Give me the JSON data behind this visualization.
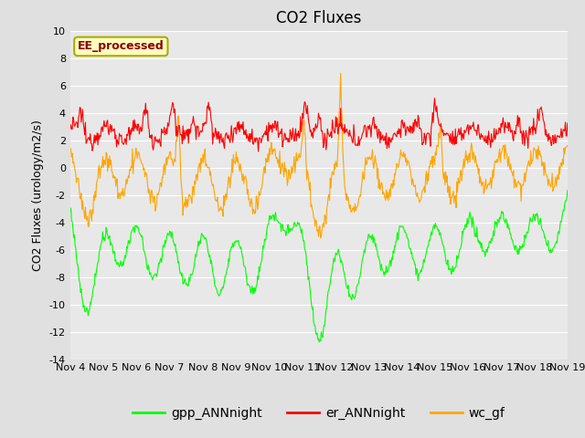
{
  "title": "CO2 Fluxes",
  "ylabel": "CO2 Fluxes (urology/m2/s)",
  "ylim": [
    -14,
    10
  ],
  "yticks": [
    -14,
    -12,
    -10,
    -8,
    -6,
    -4,
    -2,
    0,
    2,
    4,
    6,
    8,
    10
  ],
  "xtick_labels": [
    "Nov 4",
    "Nov 5",
    "Nov 6",
    "Nov 7",
    "Nov 8",
    "Nov 9",
    "Nov 10",
    "Nov 11",
    "Nov 12",
    "Nov 13",
    "Nov 14",
    "Nov 15",
    "Nov 16",
    "Nov 17",
    "Nov 18",
    "Nov 19"
  ],
  "fig_bg_color": "#e0e0e0",
  "plot_bg_color": "#e8e8e8",
  "grid_color": "#ffffff",
  "line_colors": {
    "gpp": "#00ff00",
    "er": "#ff0000",
    "wc": "#ffa500"
  },
  "legend_entries": [
    "gpp_ANNnight",
    "er_ANNnight",
    "wc_gf"
  ],
  "annotation_text": "EE_processed",
  "annotation_color": "#8b0000",
  "annotation_bg": "#ffffc0",
  "annotation_border": "#aaaa00",
  "title_fontsize": 12,
  "label_fontsize": 9,
  "tick_fontsize": 8,
  "legend_fontsize": 10
}
